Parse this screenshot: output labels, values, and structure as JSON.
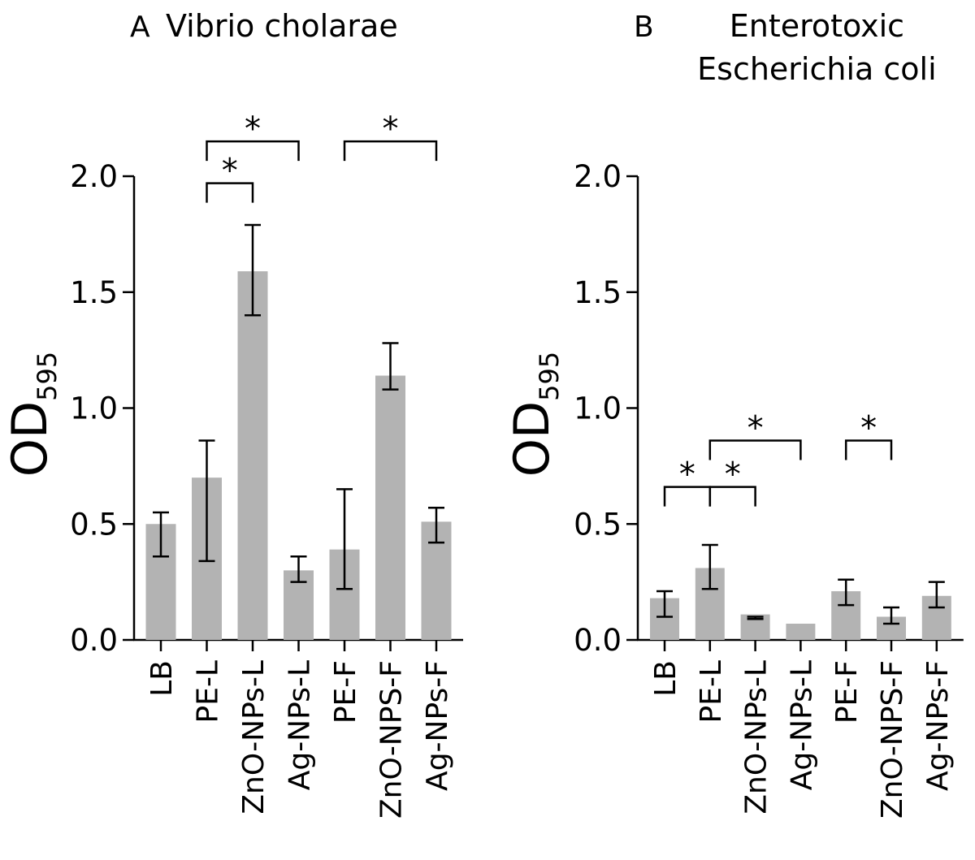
{
  "chart_data": [
    {
      "type": "bar",
      "panel_label": "A",
      "title": [
        "Vibrio cholarae"
      ],
      "ylabel": "OD",
      "ylabel_subscript": "595",
      "ylim": [
        0,
        2.0
      ],
      "yticks": [
        "0.0",
        "0.5",
        "1.0",
        "1.5",
        "2.0"
      ],
      "ytick_values": [
        0,
        0.5,
        1.0,
        1.5,
        2.0
      ],
      "categories": [
        "LB",
        "PE-L",
        "ZnO-NPs-L",
        "Ag-NPs-L",
        "PE-F",
        "ZnO-NPS-F",
        "Ag-NPs-F"
      ],
      "values": [
        0.5,
        0.7,
        1.59,
        0.3,
        0.39,
        1.14,
        0.51
      ],
      "error_low": [
        0.36,
        0.34,
        1.4,
        0.25,
        0.22,
        1.08,
        0.42
      ],
      "error_high": [
        0.55,
        0.86,
        1.79,
        0.36,
        0.65,
        1.28,
        0.57
      ],
      "significance": [
        {
          "from": 1,
          "to": 2,
          "label": "*",
          "level": 1.97
        },
        {
          "from": 1,
          "to": 3,
          "label": "*",
          "level": 2.15
        },
        {
          "from": 4,
          "to": 6,
          "label": "*",
          "level": 2.15
        }
      ]
    },
    {
      "type": "bar",
      "panel_label": "B",
      "title": [
        "Enterotoxic",
        "Escherichia coli"
      ],
      "ylabel": "OD",
      "ylabel_subscript": "595",
      "ylim": [
        0,
        2.0
      ],
      "yticks": [
        "0.0",
        "0.5",
        "1.0",
        "1.5",
        "2.0"
      ],
      "ytick_values": [
        0,
        0.5,
        1.0,
        1.5,
        2.0
      ],
      "categories": [
        "LB",
        "PE-L",
        "ZnO-NPs-L",
        "Ag-NPs-L",
        "PE-F",
        "ZnO-NPS-F",
        "Ag-NPs-F"
      ],
      "values": [
        0.18,
        0.31,
        0.11,
        0.07,
        0.21,
        0.1,
        0.19
      ],
      "error_low": [
        0.1,
        0.22,
        0.09,
        null,
        0.15,
        0.07,
        0.14
      ],
      "error_high": [
        0.21,
        0.41,
        0.1,
        null,
        0.26,
        0.14,
        0.25
      ],
      "significance": [
        {
          "from": 0,
          "to": 1,
          "label": "*",
          "level": 0.66
        },
        {
          "from": 1,
          "to": 2,
          "label": "*",
          "level": 0.66
        },
        {
          "from": 1,
          "to": 3,
          "label": "*",
          "level": 0.86
        },
        {
          "from": 4,
          "to": 5,
          "label": "*",
          "level": 0.86
        }
      ]
    }
  ]
}
